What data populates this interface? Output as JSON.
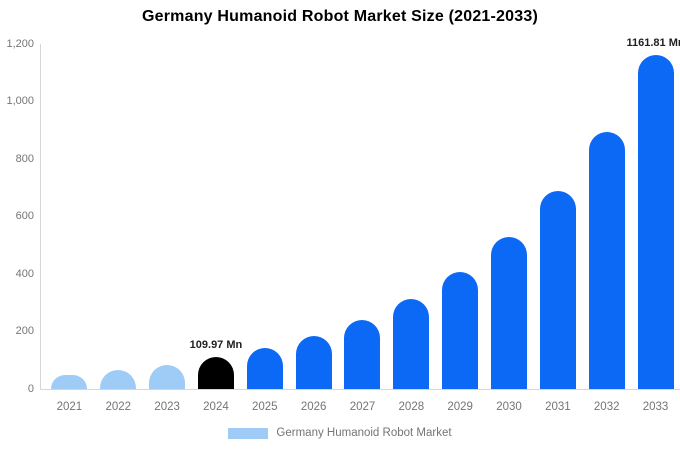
{
  "title": "Germany Humanoid Robot Market Size (2021-2033)",
  "legend": {
    "label": "Germany Humanoid Robot Market"
  },
  "colors": {
    "historical": "#9FCBF7",
    "base_year": "#000000",
    "forecast": "#0B69F5",
    "axis_line": "#d6d6d6",
    "tick_text": "#757575",
    "data_label_text": "#1f1f1f"
  },
  "chart_data": {
    "type": "bar",
    "title": "Germany Humanoid Robot Market Size (2021-2033)",
    "xlabel": "",
    "ylabel": "",
    "unit": "Mn",
    "ylim": [
      0,
      1200
    ],
    "ytick_labels": [
      "0",
      "200",
      "400",
      "600",
      "800",
      "1,000",
      "1,200"
    ],
    "grid": false,
    "legend_position": "bottom",
    "categories": [
      "2021",
      "2022",
      "2023",
      "2024",
      "2025",
      "2026",
      "2027",
      "2028",
      "2029",
      "2030",
      "2031",
      "2032",
      "2033"
    ],
    "values": [
      50.1,
      65.1,
      84.6,
      109.97,
      142.9,
      185.7,
      241.3,
      313.6,
      407.5,
      529.6,
      688.2,
      894.3,
      1161.81
    ],
    "bar_roles": [
      "historical",
      "historical",
      "historical",
      "base_year",
      "forecast",
      "forecast",
      "forecast",
      "forecast",
      "forecast",
      "forecast",
      "forecast",
      "forecast",
      "forecast"
    ],
    "data_labels": [
      {
        "index": 3,
        "text": "109.97 Mn"
      },
      {
        "index": 12,
        "text": "1161.81 Mn"
      }
    ]
  }
}
